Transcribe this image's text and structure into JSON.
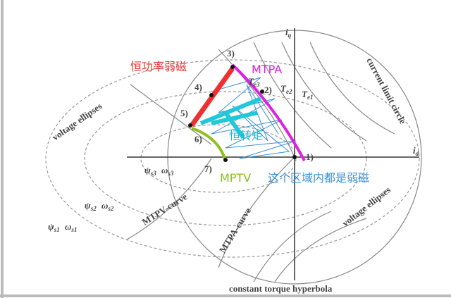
{
  "annotations": {
    "field_weakening_constant_power": "恒功率弱磁",
    "mtpa": "MTPA",
    "constant_torque": "恒转矩",
    "mptv": "MPTV",
    "region_note": "这个区域内都是弱磁"
  },
  "labels": {
    "voltage_ellipses_left": "voltage ellipses",
    "current_limit_circle": "current limit circle",
    "mtpv_curve": "MTPV-curve",
    "mtpa_curve": "MTPA-curve",
    "voltage_ellipses_right": "voltage ellipses",
    "constant_torque_hyperbola": "constant torque hyperbola"
  },
  "axes": {
    "iq": {
      "main": "i",
      "sub": "q"
    },
    "id": {
      "main": "i",
      "sub": "d"
    }
  },
  "points": [
    "1)",
    "2)",
    "3)",
    "4)",
    "5)",
    "6)",
    "7)"
  ],
  "torques": [
    {
      "main": "T",
      "sub": "e1"
    },
    {
      "main": "T",
      "sub": "e2"
    },
    {
      "main": "T",
      "sub": "e3"
    }
  ],
  "flux_speeds": [
    [
      {
        "main": "ψ",
        "sub": "s3"
      },
      {
        "main": "ω",
        "sub": "s3"
      }
    ],
    [
      {
        "main": "ψ",
        "sub": "s2"
      },
      {
        "main": "ω",
        "sub": "s2"
      }
    ],
    [
      {
        "main": "ψ",
        "sub": "s1"
      },
      {
        "main": "ω",
        "sub": "s1"
      }
    ]
  ]
}
